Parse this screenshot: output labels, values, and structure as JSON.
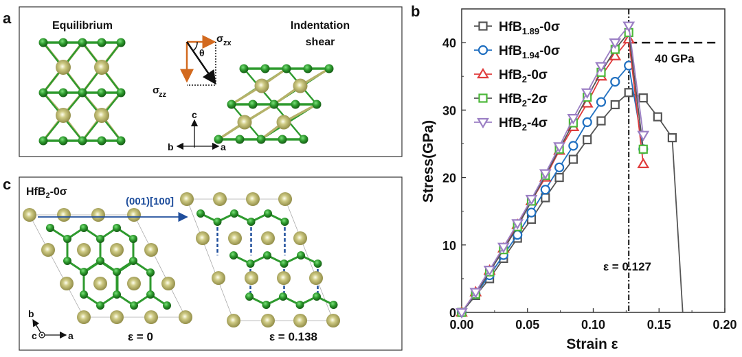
{
  "panel_a": {
    "label": "a",
    "left_title": "Equilibrium",
    "right_title_line1": "Indentation",
    "right_title_line2": "shear",
    "sigma_zx": "σ",
    "sigma_zx_sub": "zx",
    "sigma_zz": "σ",
    "sigma_zz_sub": "zz",
    "theta": "θ",
    "axis_c": "c",
    "axis_b": "b",
    "axis_a": "a"
  },
  "panel_c": {
    "label": "c",
    "title_main": "HfB",
    "title_sub": "2",
    "title_suffix": "-0σ",
    "slip_system": "(001)[100]",
    "axis_b": "b",
    "axis_c": "c",
    "axis_a": "a",
    "left_strain": "ε = 0",
    "right_strain": "ε = 0.138"
  },
  "colors": {
    "boron": "#2e9a2e",
    "hafnium": "#b5b26a",
    "arrow_orange": "#d2691e",
    "slip_blue": "#1f4e9c"
  },
  "chart_data": {
    "type": "line",
    "panel_label": "b",
    "xlabel": "Strain ε",
    "ylabel": "Stress(GPa)",
    "xlim": [
      0,
      0.2
    ],
    "ylim": [
      0,
      45
    ],
    "xticks": [
      "0.00",
      "0.05",
      "0.10",
      "0.15",
      "0.20"
    ],
    "yticks": [
      "0",
      "10",
      "20",
      "30",
      "40"
    ],
    "legend_position": "top-left",
    "annotations": {
      "threshold_label": "40 GPa",
      "threshold_value": 40,
      "strain_label": "ε = 0.127",
      "strain_value": 0.127
    },
    "series": [
      {
        "name": "HfB",
        "sub": "1.89",
        "suffix": "-0σ",
        "color": "#555555",
        "marker": "square",
        "x": [
          0,
          0.0106,
          0.0212,
          0.0318,
          0.0424,
          0.053,
          0.0636,
          0.0742,
          0.0848,
          0.0954,
          0.106,
          0.1166,
          0.127,
          0.138,
          0.149,
          0.16,
          0.168
        ],
        "y": [
          0,
          2.5,
          5,
          8,
          11,
          13.8,
          17,
          20,
          22.7,
          25.6,
          28.4,
          30.8,
          32.6,
          31.8,
          29,
          25.9,
          0
        ]
      },
      {
        "name": "HfB",
        "sub": "1.94",
        "suffix": "-0σ",
        "color": "#1f6fc0",
        "marker": "circle",
        "x": [
          0,
          0.0106,
          0.0212,
          0.0318,
          0.0424,
          0.053,
          0.0636,
          0.0742,
          0.0848,
          0.0954,
          0.106,
          0.1166,
          0.127,
          0.138
        ],
        "y": [
          0,
          2.7,
          5.5,
          8.5,
          11.5,
          14.8,
          18.2,
          21.5,
          24.7,
          28.2,
          31.2,
          34.2,
          36.6,
          24.2
        ]
      },
      {
        "name": "HfB",
        "sub": "2",
        "suffix": "-0σ",
        "color": "#e03c3c",
        "marker": "triangle-up",
        "x": [
          0,
          0.0106,
          0.0212,
          0.0318,
          0.0424,
          0.053,
          0.0636,
          0.0742,
          0.0848,
          0.0954,
          0.106,
          0.1166,
          0.127,
          0.138
        ],
        "y": [
          0,
          3,
          6.2,
          9.5,
          13,
          16.5,
          20,
          24,
          27.5,
          31,
          35,
          38,
          40.5,
          22
        ]
      },
      {
        "name": "HfB",
        "sub": "2",
        "suffix": "-2σ",
        "color": "#4cb83a",
        "marker": "square",
        "x": [
          0,
          0.0106,
          0.0212,
          0.0318,
          0.0424,
          0.053,
          0.0636,
          0.0742,
          0.0848,
          0.0954,
          0.106,
          0.1166,
          0.127,
          0.138
        ],
        "y": [
          0,
          2.7,
          6,
          9.3,
          12.7,
          16.5,
          20.3,
          24.2,
          28.1,
          31.9,
          35.6,
          39,
          41.5,
          24.2
        ]
      },
      {
        "name": "HfB",
        "sub": "2",
        "suffix": "-4σ",
        "color": "#9b7fc4",
        "marker": "triangle-down",
        "x": [
          0,
          0.0106,
          0.0212,
          0.0318,
          0.0424,
          0.053,
          0.0636,
          0.0742,
          0.0848,
          0.0954,
          0.106,
          0.1166,
          0.127,
          0.138
        ],
        "y": [
          0,
          3,
          6.3,
          9.7,
          13.2,
          16.8,
          20.6,
          24.6,
          28.8,
          32.6,
          36.5,
          40,
          42.5,
          26.3
        ]
      }
    ]
  }
}
